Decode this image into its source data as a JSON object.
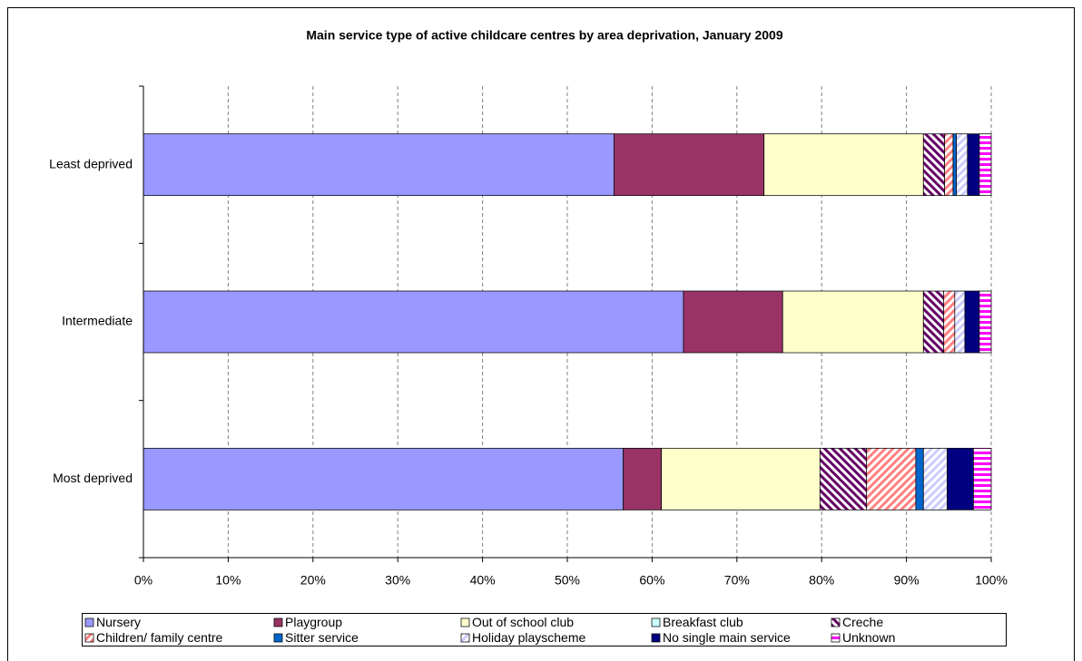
{
  "chart_data": {
    "type": "stacked_barh",
    "title": "Main service type of active childcare centres by area deprivation, January 2009",
    "categories": [
      "Least deprived",
      "Intermediate",
      "Most deprived"
    ],
    "series": [
      {
        "name": "Nursery",
        "color": "#9999ff",
        "values": [
          55.5,
          63.7,
          56.6
        ]
      },
      {
        "name": "Playgroup",
        "color": "#993366",
        "values": [
          17.7,
          11.7,
          4.5
        ]
      },
      {
        "name": "Out of school club",
        "color": "#ffffcc",
        "values": [
          18.8,
          16.6,
          18.7
        ]
      },
      {
        "name": "Breakfast club",
        "color": "#ccffff",
        "values": [
          0,
          0,
          0
        ]
      },
      {
        "name": "Creche",
        "color": "#660066",
        "pattern": "diagonal-down",
        "values": [
          2.5,
          2.4,
          5.5
        ]
      },
      {
        "name": "Children/ family centre",
        "color": "#ff8080",
        "pattern": "diagonal-up",
        "values": [
          1.0,
          1.3,
          5.8
        ]
      },
      {
        "name": "Sitter service",
        "color": "#0066cc",
        "values": [
          0.4,
          0,
          0.9
        ]
      },
      {
        "name": "Holiday playscheme",
        "color": "#ccccff",
        "pattern": "diagonal-up",
        "values": [
          1.3,
          1.2,
          2.8
        ]
      },
      {
        "name": "No single main service",
        "color": "#000080",
        "values": [
          1.4,
          1.7,
          3.1
        ]
      },
      {
        "name": "Unknown",
        "color": "#ff00ff",
        "pattern": "horizontal",
        "values": [
          1.4,
          1.4,
          2.1
        ]
      }
    ],
    "xlim": [
      0,
      100
    ],
    "xticks": [
      {
        "value": 0,
        "label": "0%"
      },
      {
        "value": 10,
        "label": "10%"
      },
      {
        "value": 20,
        "label": "20%"
      },
      {
        "value": 30,
        "label": "30%"
      },
      {
        "value": 40,
        "label": "40%"
      },
      {
        "value": 50,
        "label": "50%"
      },
      {
        "value": 60,
        "label": "60%"
      },
      {
        "value": 70,
        "label": "70%"
      },
      {
        "value": 80,
        "label": "80%"
      },
      {
        "value": 90,
        "label": "90%"
      },
      {
        "value": 100,
        "label": "100%"
      }
    ],
    "grid": true,
    "legend": "bottom"
  }
}
